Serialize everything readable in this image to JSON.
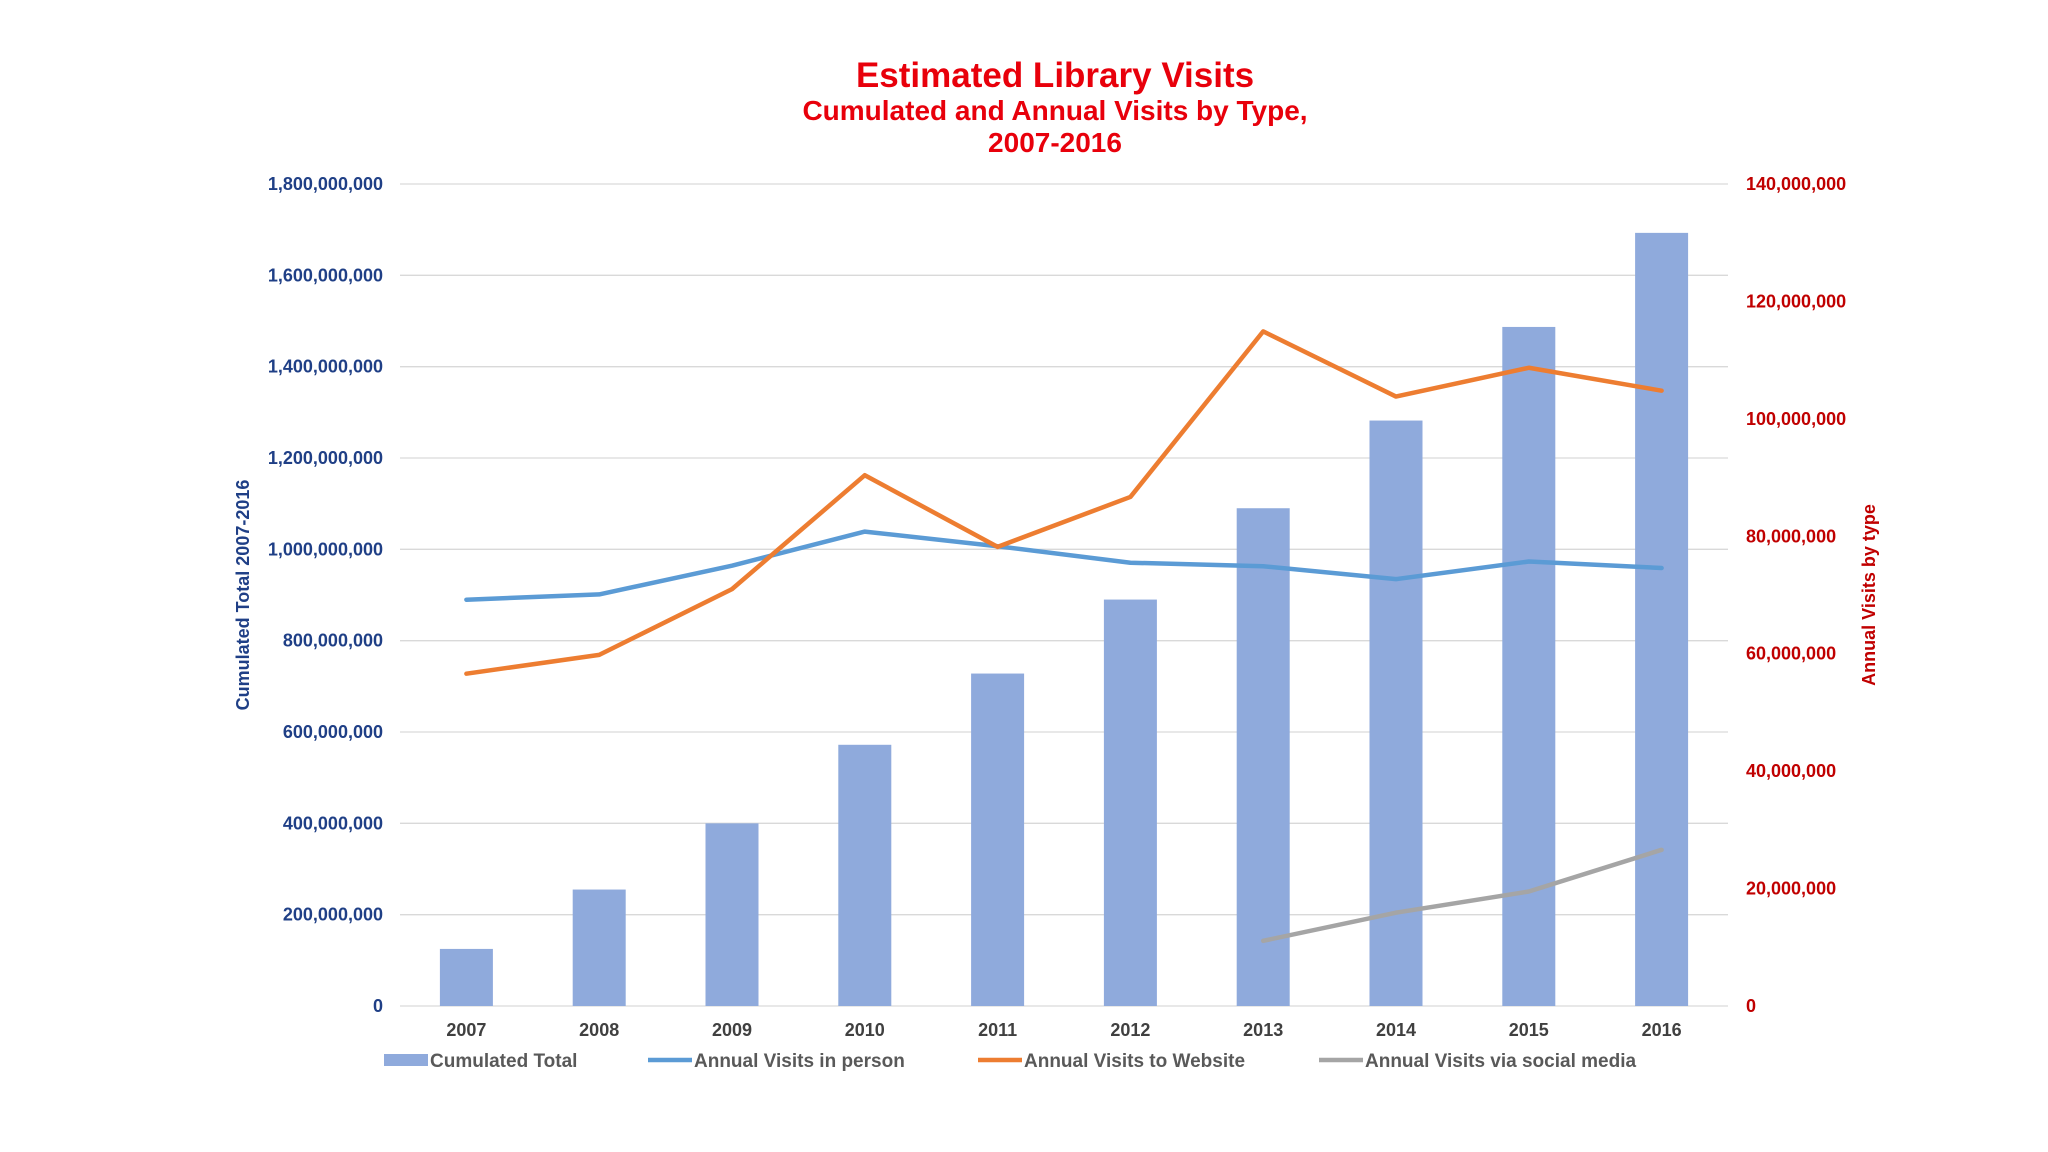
{
  "colors": {
    "title": "#e8000b",
    "left_axis": "#1f3f86",
    "right_axis": "#c00000",
    "bar": "#8faadc",
    "in_person": "#5b9bd5",
    "website": "#ed7d31",
    "social": "#a5a5a5",
    "grid": "#d9d9d9"
  },
  "chart_data": {
    "type": "bar",
    "title": "Estimated Library Visits",
    "subtitle_line1": "Cumulated and Annual Visits by Type,",
    "subtitle_line2": "2007-2016",
    "categories": [
      "2007",
      "2008",
      "2009",
      "2010",
      "2011",
      "2012",
      "2013",
      "2014",
      "2015",
      "2016"
    ],
    "left_axis": {
      "label": "Cumulated Total 2007-2016",
      "ylim": [
        0,
        1800000000
      ],
      "ticks": [
        0,
        200000000,
        400000000,
        600000000,
        800000000,
        1000000000,
        1200000000,
        1400000000,
        1600000000,
        1800000000
      ],
      "tick_labels": [
        "0",
        "200,000,000",
        "400,000,000",
        "600,000,000",
        "800,000,000",
        "1,000,000,000",
        "1,200,000,000",
        "1,400,000,000",
        "1,600,000,000",
        "1,800,000,000"
      ]
    },
    "right_axis": {
      "label": "Annual Visits by type",
      "ylim": [
        0,
        140000000
      ],
      "ticks": [
        0,
        20000000,
        40000000,
        60000000,
        80000000,
        100000000,
        120000000,
        140000000
      ],
      "tick_labels": [
        "0",
        "20,000,000",
        "40,000,000",
        "60,000,000",
        "80,000,000",
        "100,000,000",
        "120,000,000",
        "140,000,000"
      ]
    },
    "series": [
      {
        "name": "Cumulated Total",
        "type": "bar",
        "axis": "left",
        "values": [
          125000000,
          255000000,
          400000000,
          572000000,
          728000000,
          890000000,
          1090000000,
          1282000000,
          1487000000,
          1693000000
        ]
      },
      {
        "name": "Annual Visits in person",
        "type": "line",
        "axis": "right",
        "values": [
          69200000,
          70100000,
          75000000,
          80800000,
          78300000,
          75500000,
          74900000,
          72700000,
          75700000,
          74600000
        ]
      },
      {
        "name": "Annual Visits to Website",
        "type": "line",
        "axis": "right",
        "values": [
          56600000,
          59800000,
          71000000,
          90400000,
          78200000,
          86700000,
          114900000,
          103800000,
          108700000,
          104800000
        ]
      },
      {
        "name": "Annual Visits via social media",
        "type": "line",
        "axis": "right",
        "values": [
          null,
          null,
          null,
          null,
          null,
          null,
          11100000,
          15900000,
          19500000,
          26600000
        ]
      }
    ],
    "legend_position": "bottom",
    "grid": true
  }
}
